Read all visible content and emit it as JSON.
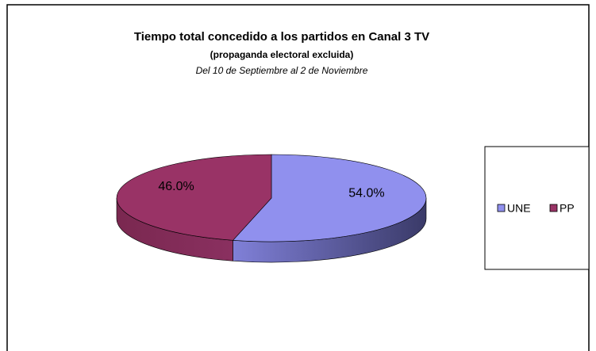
{
  "chart_data": {
    "type": "pie",
    "title": "Tiempo total concedido a los partidos en Canal 3 TV",
    "subtitle": "(propaganda electoral excluida)",
    "caption": "Del 10 de Septiembre al 2 de Noviembre",
    "categories": [
      "UNE",
      "PP"
    ],
    "values": [
      54.0,
      46.0
    ],
    "value_labels": [
      "54.0%",
      "46.0%"
    ],
    "colors": [
      "#9090ee",
      "#993366"
    ],
    "legend": "right"
  }
}
